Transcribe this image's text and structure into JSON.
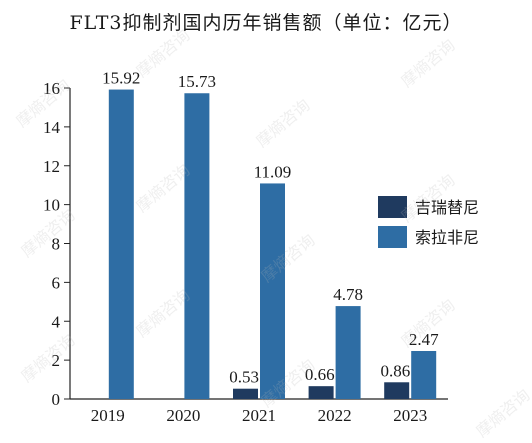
{
  "watermark_text": "摩熵咨询",
  "chart_data": {
    "type": "bar",
    "title": "FLT3抑制剂国内历年销售额（单位：亿元）",
    "xlabel": "",
    "ylabel": "",
    "categories": [
      "2019",
      "2020",
      "2021",
      "2022",
      "2023"
    ],
    "ylim": [
      0,
      16
    ],
    "yticks": [
      0,
      2,
      4,
      6,
      8,
      10,
      12,
      14,
      16
    ],
    "grid": false,
    "legend_position": "right",
    "series": [
      {
        "name": "吉瑞替尼",
        "color": "#1f3a5f",
        "values": [
          null,
          null,
          0.53,
          0.66,
          0.86
        ],
        "labels": [
          "",
          "",
          "0.53",
          "0.66",
          "0.86"
        ]
      },
      {
        "name": "索拉非尼",
        "color": "#2e6da4",
        "values": [
          15.92,
          15.73,
          11.09,
          4.78,
          2.47
        ],
        "labels": [
          "15.92",
          "15.73",
          "11.09",
          "4.78",
          "2.47"
        ]
      }
    ]
  }
}
